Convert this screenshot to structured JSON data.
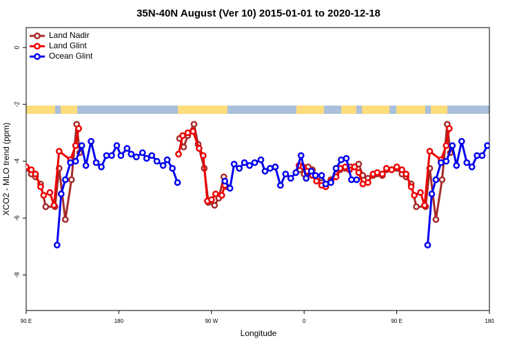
{
  "chart_data": {
    "type": "line",
    "title": "35N-40N August (Ver 10)   2015-01-01 to 2020-12-18",
    "x_label": "Longitude",
    "y_label": "XCO2 - MLO trend (ppm)",
    "xlim": [
      90,
      540
    ],
    "ylim": [
      -9.25,
      0.7
    ],
    "xticks": [
      {
        "value": 90,
        "label": "90 E"
      },
      {
        "value": 180,
        "label": "180"
      },
      {
        "value": 270,
        "label": "90 W"
      },
      {
        "value": 360,
        "label": "0"
      },
      {
        "value": 450,
        "label": "90 E"
      },
      {
        "value": 540,
        "label": "180"
      }
    ],
    "yticks": [
      0,
      -2,
      -4,
      -6,
      -8
    ],
    "grid": false,
    "legend": "top-left",
    "series": [
      {
        "name": "Land Nadir",
        "color": "#a52a2a",
        "x": [
          90,
          95,
          99,
          104,
          109,
          118,
          122,
          128,
          134,
          139,
          142,
          null,
          239,
          243,
          247,
          253,
          257,
          263,
          267,
          273,
          277,
          282,
          285,
          null,
          356,
          360,
          364,
          368,
          373,
          377,
          381,
          386,
          391,
          395,
          400,
          405,
          409,
          413,
          417,
          422,
          427,
          431,
          436,
          440,
          445,
          450,
          455,
          459,
          464,
          469,
          478,
          482,
          488,
          494,
          499,
          502
        ],
        "values": [
          -4.25,
          -4.45,
          -4.55,
          -4.8,
          -5.6,
          -5.6,
          -4.25,
          -6.05,
          -4.65,
          -2.7,
          -3.7,
          null,
          -3.2,
          -3.5,
          -3.1,
          -2.7,
          -3.4,
          -4.25,
          -5.45,
          -5.55,
          -5.3,
          -4.55,
          -4.9,
          null,
          -4.3,
          -4.45,
          -4.2,
          -4.3,
          -4.55,
          -4.75,
          -4.8,
          -4.65,
          -4.45,
          -4.3,
          -4.25,
          -4.2,
          -4.2,
          -4.1,
          -4.5,
          -4.6,
          -4.5,
          -4.45,
          -4.5,
          -4.3,
          -4.3,
          -4.25,
          -4.45,
          -4.55,
          -4.8,
          -5.6,
          -5.6,
          -4.25,
          -6.05,
          -4.65,
          -2.7,
          -3.7
        ]
      },
      {
        "name": "Land Glint",
        "color": "#ee0000",
        "x": [
          90,
          95,
          99,
          104,
          107,
          113,
          117,
          122,
          133,
          138,
          141,
          null,
          238,
          242,
          247,
          252,
          258,
          262,
          266,
          270,
          274,
          280,
          283,
          null,
          355,
          359,
          363,
          368,
          372,
          377,
          381,
          386,
          391,
          395,
          400,
          404,
          409,
          413,
          417,
          422,
          427,
          431,
          436,
          440,
          445,
          450,
          455,
          459,
          464,
          467,
          473,
          477,
          482,
          493,
          498,
          501
        ],
        "values": [
          -4.2,
          -4.3,
          -4.45,
          -4.9,
          -5.2,
          -5.1,
          -5.55,
          -3.65,
          -3.95,
          -3.45,
          -2.85,
          null,
          -3.75,
          -3.1,
          -3.0,
          -2.95,
          -3.55,
          -3.8,
          -5.4,
          -5.35,
          -5.15,
          -5.2,
          -4.85,
          null,
          -4.15,
          -4.2,
          -4.35,
          -4.5,
          -4.7,
          -4.85,
          -4.9,
          -4.7,
          -4.55,
          -4.25,
          -4.2,
          -4.3,
          -4.2,
          -4.4,
          -4.8,
          -4.75,
          -4.45,
          -4.4,
          -4.45,
          -4.25,
          -4.3,
          -4.2,
          -4.3,
          -4.45,
          -4.9,
          -5.2,
          -5.1,
          -5.55,
          -3.65,
          -3.95,
          -3.45,
          -2.85
        ]
      },
      {
        "name": "Ocean Glint",
        "color": "#0000ee",
        "x": [
          120,
          124,
          128,
          133,
          138,
          144,
          148,
          153,
          158,
          163,
          168,
          173,
          178,
          182,
          188,
          192,
          197,
          203,
          207,
          212,
          217,
          223,
          227,
          232,
          237,
          null,
          283,
          288,
          292,
          297,
          302,
          307,
          312,
          318,
          322,
          327,
          332,
          337,
          342,
          347,
          352,
          357,
          362,
          367,
          371,
          377,
          381,
          386,
          391,
          396,
          401,
          406,
          411,
          null,
          480,
          484,
          488,
          493,
          498,
          504,
          508,
          513,
          518,
          523,
          528,
          533,
          538
        ],
        "values": [
          -6.95,
          -5.15,
          -4.65,
          -4.05,
          -4.0,
          -3.45,
          -4.15,
          -3.3,
          -4.05,
          -4.2,
          -3.8,
          -3.8,
          -3.45,
          -3.8,
          -3.55,
          -3.75,
          -3.85,
          -3.7,
          -3.9,
          -3.8,
          -4.0,
          -4.15,
          -3.95,
          -4.25,
          -4.75,
          null,
          -4.7,
          -4.95,
          -4.1,
          -4.25,
          -4.05,
          -4.15,
          -4.05,
          -3.95,
          -4.35,
          -4.25,
          -4.2,
          -4.85,
          -4.45,
          -4.6,
          -4.4,
          -3.8,
          -4.6,
          -4.35,
          -4.5,
          -4.5,
          -4.8,
          -4.75,
          -4.25,
          -3.95,
          -3.9,
          -4.65,
          -4.65,
          null,
          -6.95,
          -5.15,
          -4.65,
          -4.05,
          -4.0,
          -3.45,
          -4.15,
          -3.3,
          -4.05,
          -4.2,
          -3.8,
          -3.8,
          -3.45
        ]
      }
    ]
  }
}
